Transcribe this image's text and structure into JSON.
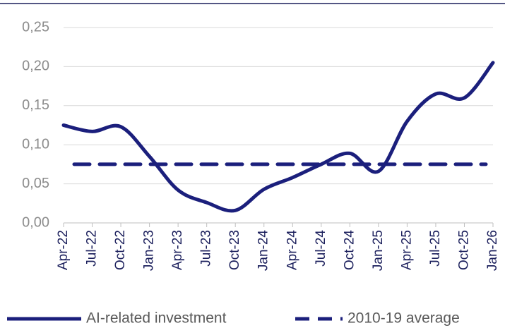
{
  "chart_data": {
    "type": "line",
    "categories": [
      "Apr-22",
      "Jul-22",
      "Oct-22",
      "Jan-23",
      "Apr-23",
      "Jul-23",
      "Oct-23",
      "Jan-24",
      "Apr-24",
      "Jul-24",
      "Oct-24",
      "Jan-25",
      "Apr-25",
      "Jul-25",
      "Oct-25",
      "Jan-26"
    ],
    "series": [
      {
        "name": "AI-related investment",
        "color": "#1b1f7c",
        "dashed": false,
        "values": [
          0.125,
          0.117,
          0.123,
          0.085,
          0.042,
          0.026,
          0.016,
          0.043,
          0.058,
          0.075,
          0.089,
          0.066,
          0.13,
          0.165,
          0.16,
          0.205
        ]
      },
      {
        "name": "2010-19 average",
        "color": "#1b1f7c",
        "dashed": true,
        "values": [
          0.075,
          0.075,
          0.075,
          0.075,
          0.075,
          0.075,
          0.075,
          0.075,
          0.075,
          0.075,
          0.075,
          0.075,
          0.075,
          0.075,
          0.075,
          0.075
        ]
      }
    ],
    "ylim": [
      0,
      0.25
    ],
    "yticks": [
      {
        "value": 0,
        "label": "0,00"
      },
      {
        "value": 0.05,
        "label": "0,05"
      },
      {
        "value": 0.1,
        "label": "0,10"
      },
      {
        "value": 0.15,
        "label": "0,15"
      },
      {
        "value": 0.2,
        "label": "0,20"
      },
      {
        "value": 0.25,
        "label": "0,25"
      }
    ],
    "grid": true
  }
}
